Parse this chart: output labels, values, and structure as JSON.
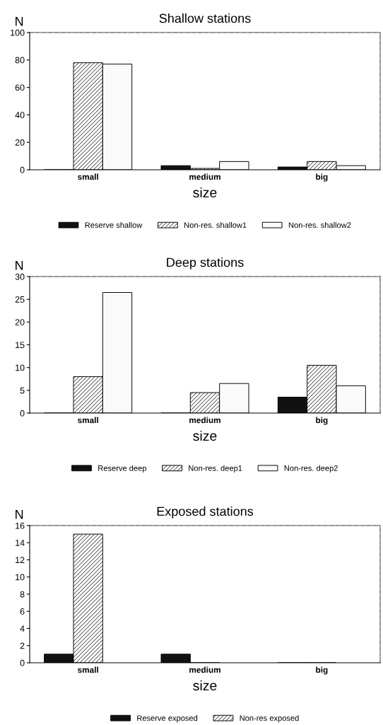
{
  "chart_data": [
    {
      "type": "bar",
      "title": "Shallow stations",
      "xlabel": "size",
      "ylabel": "N",
      "categories": [
        "small",
        "medium",
        "big"
      ],
      "ylim": [
        0,
        100
      ],
      "yticks": [
        0,
        20,
        40,
        60,
        80,
        100
      ],
      "legend": "bottom",
      "series": [
        {
          "name": "Reserve shallow",
          "color": "#111111",
          "values": [
            0,
            3,
            2
          ]
        },
        {
          "name": "Non-res. shallow1",
          "color": "#000000",
          "values": [
            78,
            1,
            6
          ]
        },
        {
          "name": "Non-res. shallow2",
          "color": "#fafafa",
          "values": [
            77,
            6,
            3
          ]
        }
      ]
    },
    {
      "type": "bar",
      "title": "Deep stations",
      "xlabel": "size",
      "ylabel": "N",
      "categories": [
        "small",
        "medium",
        "big"
      ],
      "ylim": [
        0,
        30
      ],
      "yticks": [
        0,
        5,
        10,
        15,
        20,
        25,
        30
      ],
      "legend": "bottom",
      "series": [
        {
          "name": "Reserve deep",
          "color": "#111111",
          "values": [
            0,
            0,
            3.5
          ]
        },
        {
          "name": "Non-res. deep1",
          "color": "#000000",
          "values": [
            8,
            4.5,
            10.5
          ]
        },
        {
          "name": "Non-res. deep2",
          "color": "#fafafa",
          "values": [
            26.5,
            6.5,
            6
          ]
        }
      ]
    },
    {
      "type": "bar",
      "title": "Exposed stations",
      "xlabel": "size",
      "ylabel": "N",
      "categories": [
        "small",
        "medium",
        "big"
      ],
      "ylim": [
        0,
        16
      ],
      "yticks": [
        0,
        2,
        4,
        6,
        8,
        10,
        12,
        14,
        16
      ],
      "legend": "bottom",
      "series": [
        {
          "name": "Reserve exposed",
          "color": "#111111",
          "values": [
            1,
            1,
            0
          ]
        },
        {
          "name": "Non-res exposed",
          "color": "#000000",
          "values": [
            15,
            0,
            0
          ]
        }
      ]
    }
  ]
}
